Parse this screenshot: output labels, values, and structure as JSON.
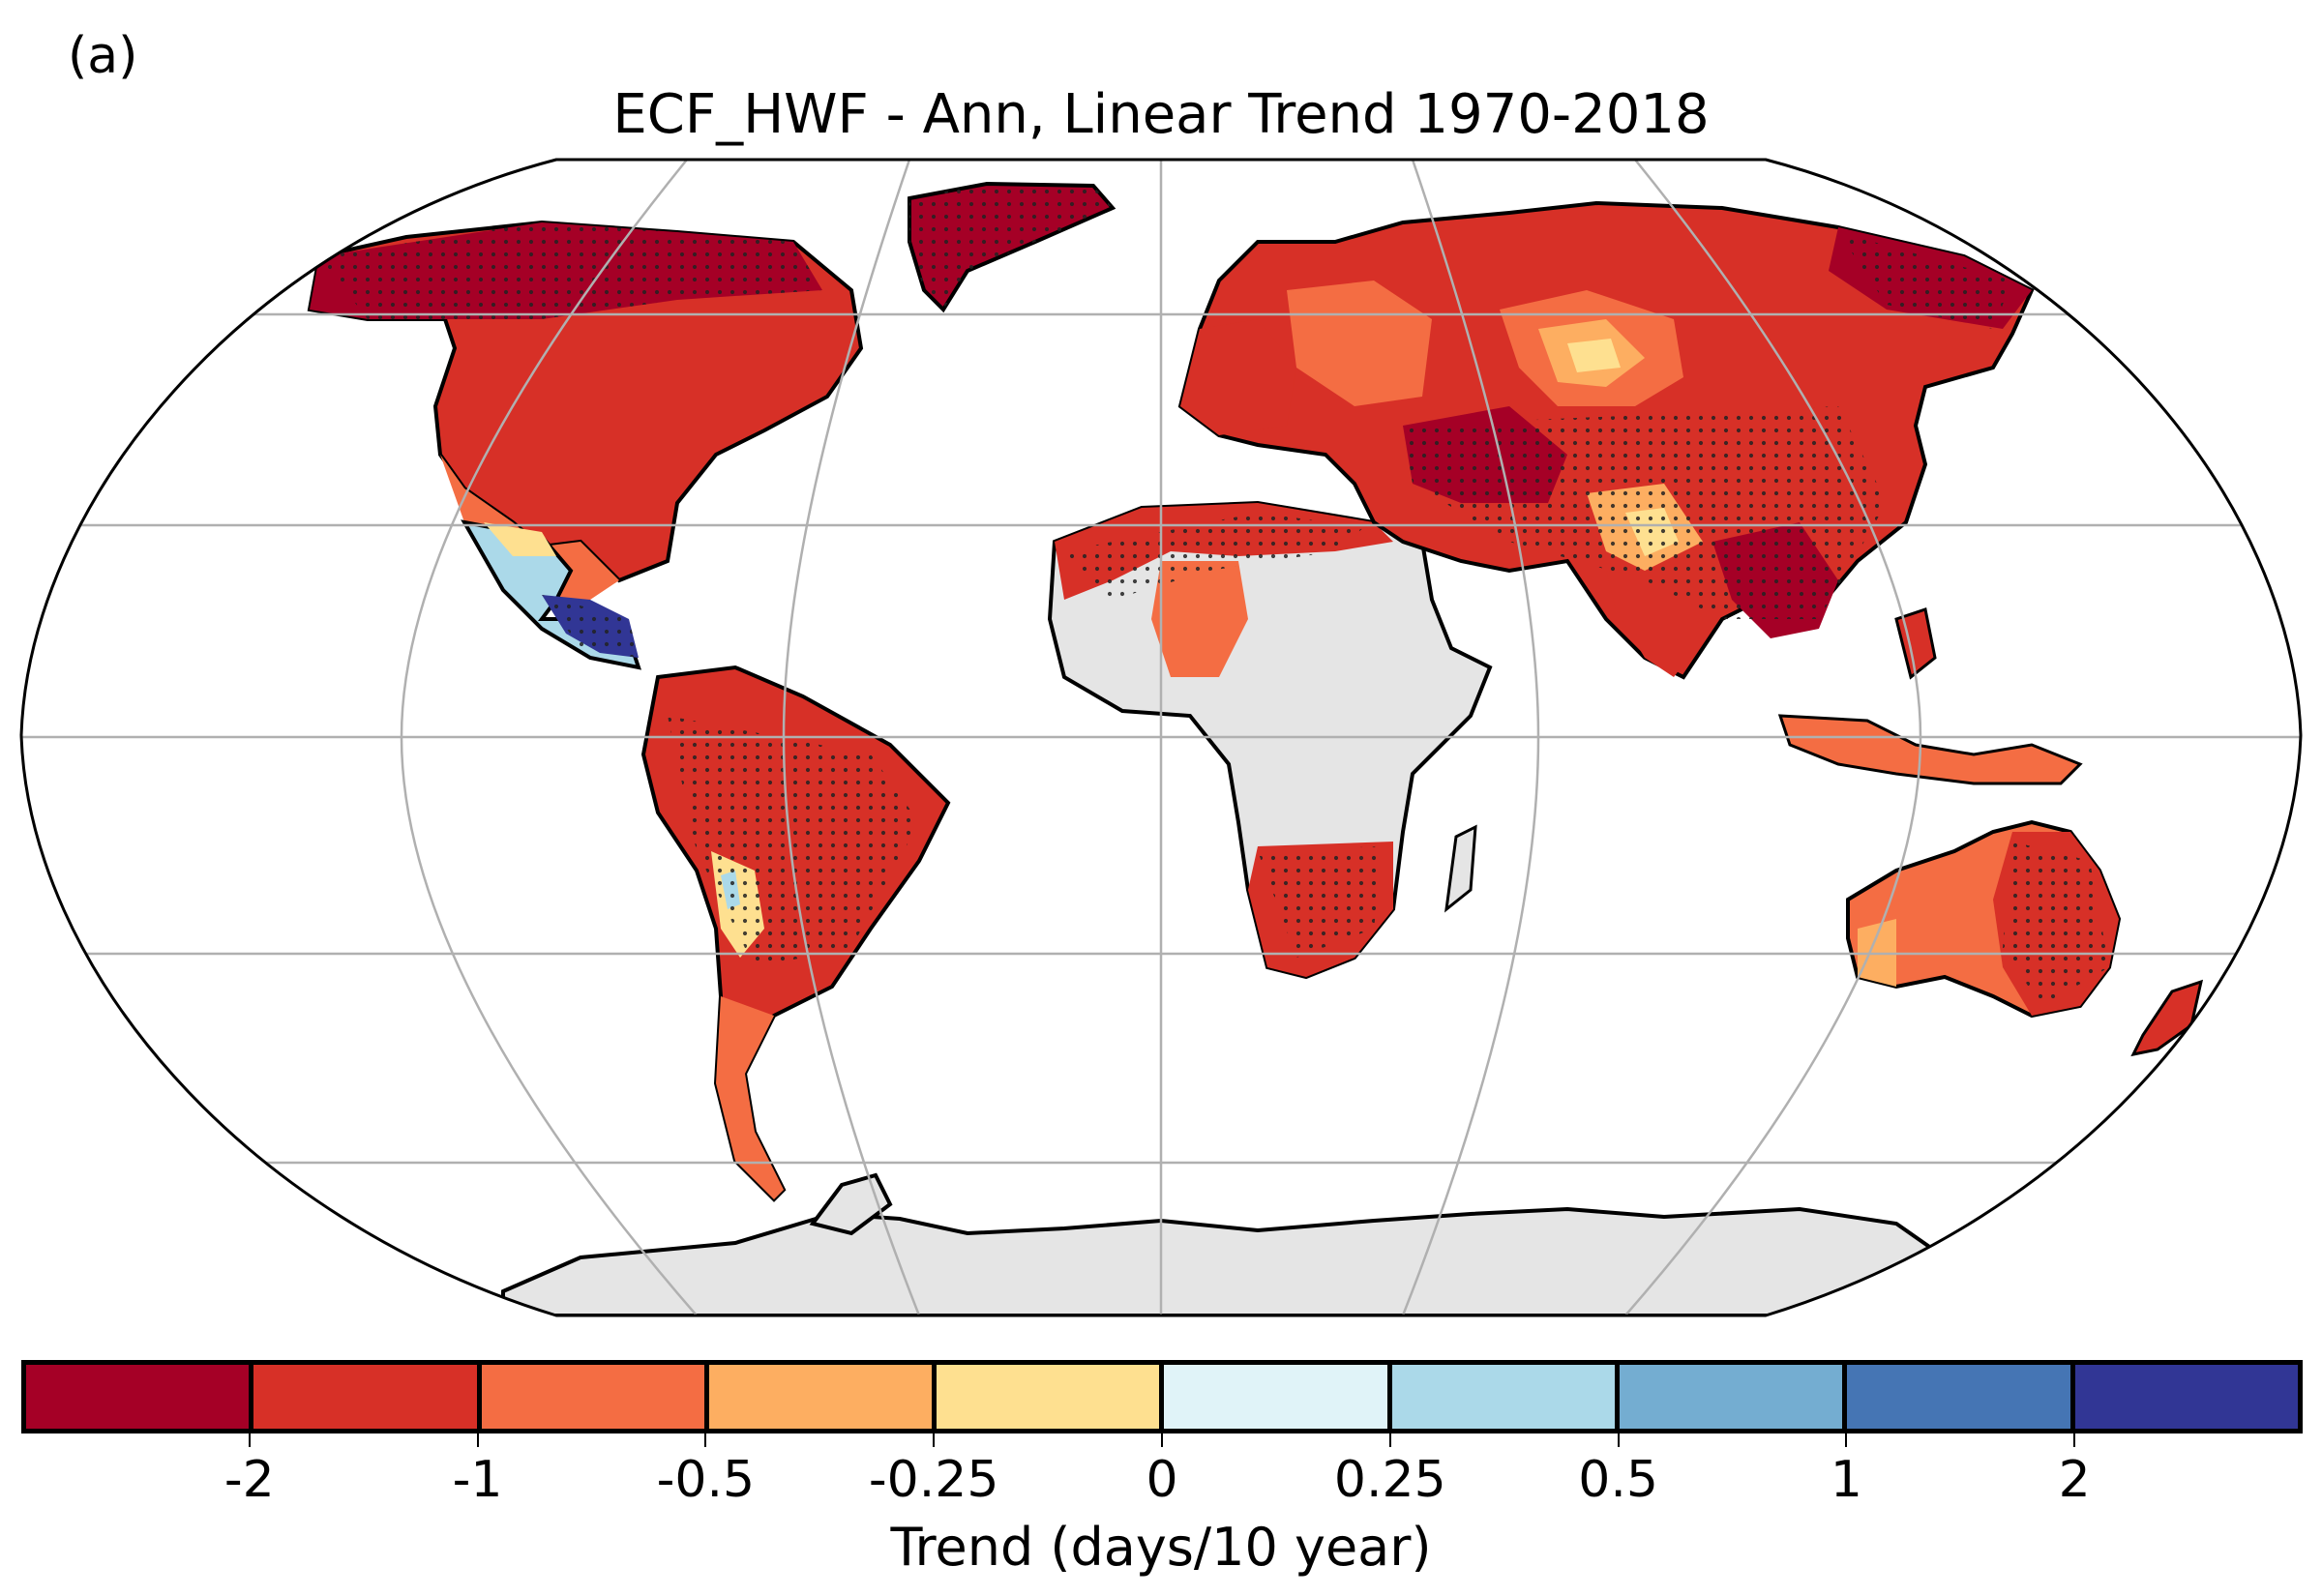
{
  "panel_label": "(a)",
  "title": "ECF_HWF - Ann, Linear Trend 1970-2018",
  "colorbar": {
    "label": "Trend (days/10 year)",
    "tick_labels": [
      "-2",
      "-1",
      "-0.5",
      "-0.25",
      "0",
      "0.25",
      "0.5",
      "1",
      "2"
    ],
    "bin_colors": [
      "#a50026",
      "#d73027",
      "#f46d43",
      "#fdae61",
      "#fee090",
      "#e0f3f8",
      "#abd9e9",
      "#74add1",
      "#4575b4",
      "#313695"
    ]
  },
  "map": {
    "projection": "Robinson",
    "no_data_color": "#e5e5e5",
    "gridline_color": "#b0b0b0",
    "stippling": "significant trends marked with black dots"
  }
}
